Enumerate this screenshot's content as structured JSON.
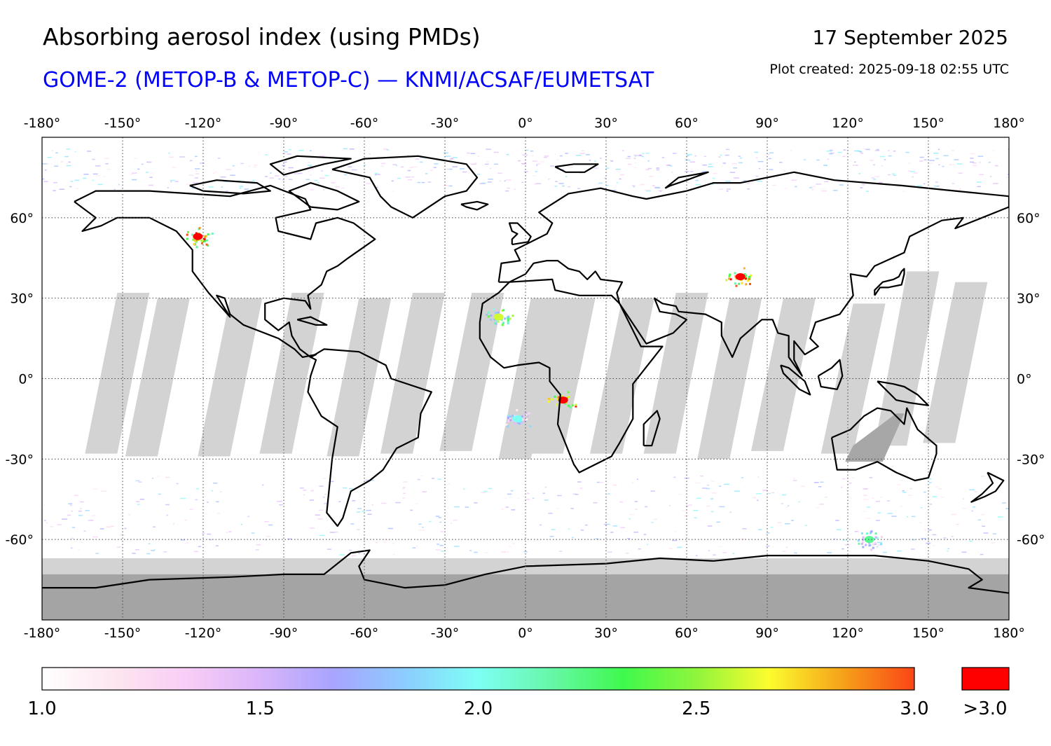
{
  "header": {
    "title": "Absorbing aerosol index (using PMDs)",
    "subtitle": "GOME-2 (METOP-B & METOP-C) — KNMI/ACSAF/EUMETSAT",
    "date": "17 September 2025",
    "created": "Plot created: 2025-09-18 02:55 UTC"
  },
  "map": {
    "projection": "equirectangular",
    "lon_range": [
      -180,
      180
    ],
    "lat_range": [
      -90,
      90
    ],
    "lon_ticks": [
      {
        "value": -180,
        "label": "-180°"
      },
      {
        "value": -150,
        "label": "-150°"
      },
      {
        "value": -120,
        "label": "-120°"
      },
      {
        "value": -90,
        "label": "-90°"
      },
      {
        "value": -60,
        "label": "-60°"
      },
      {
        "value": -30,
        "label": "-30°"
      },
      {
        "value": 0,
        "label": "0°"
      },
      {
        "value": 30,
        "label": "30°"
      },
      {
        "value": 60,
        "label": "60°"
      },
      {
        "value": 90,
        "label": "90°"
      },
      {
        "value": 120,
        "label": "120°"
      },
      {
        "value": 150,
        "label": "150°"
      },
      {
        "value": 180,
        "label": "180°"
      }
    ],
    "lat_ticks": [
      {
        "value": 60,
        "label": "60°"
      },
      {
        "value": 30,
        "label": "30°"
      },
      {
        "value": 0,
        "label": "0°"
      },
      {
        "value": -30,
        "label": "-30°"
      },
      {
        "value": -60,
        "label": "-60°"
      }
    ],
    "colors": {
      "coast": "#000000",
      "grid": "#444444",
      "no_data": "#d3d3d3",
      "polar_night": "#a4a4a4"
    },
    "hotspots": [
      {
        "name": "canada-fire",
        "lon": -122,
        "lat": 53,
        "aai": 3.1
      },
      {
        "name": "west-sahara-dust",
        "lon": -10,
        "lat": 23,
        "aai": 2.6
      },
      {
        "name": "central-africa-smoke",
        "lon": 14,
        "lat": -8,
        "aai": 3.1
      },
      {
        "name": "south-atlantic-smoke",
        "lon": -3,
        "lat": -15,
        "aai": 2.0
      },
      {
        "name": "central-asia-plume",
        "lon": 80,
        "lat": 38,
        "aai": 3.1
      },
      {
        "name": "southern-ocean",
        "lon": 128,
        "lat": -60,
        "aai": 2.2
      }
    ]
  },
  "colorbar": {
    "min": 1.0,
    "max": 3.0,
    "stops": [
      "#ffffff",
      "#fde6f0",
      "#f8cdf6",
      "#d9b5fa",
      "#a8a4ff",
      "#8ccdff",
      "#7efff5",
      "#66f7a8",
      "#3ff94d",
      "#8ff53c",
      "#fcfc2e",
      "#f6a319",
      "#fa4517"
    ],
    "tick_labels": [
      "1.0",
      "1.5",
      "2.0",
      "2.5",
      "3.0"
    ],
    "over_label": ">3.0",
    "over_color": "#ff0000"
  }
}
